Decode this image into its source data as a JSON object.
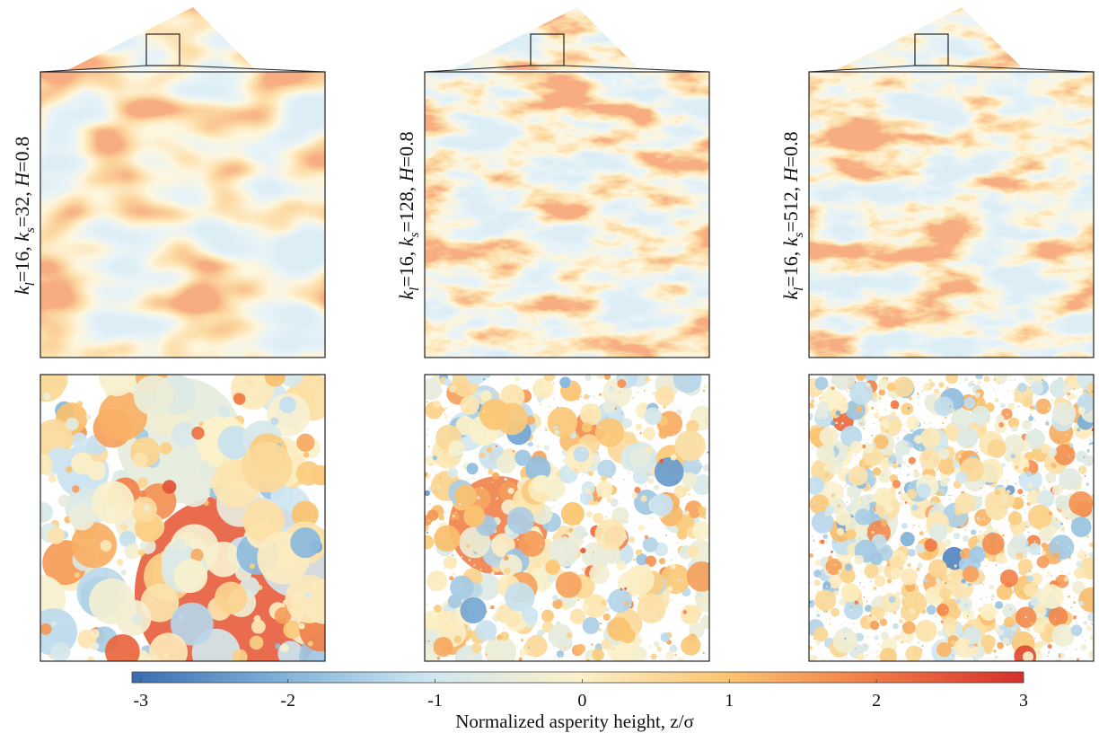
{
  "panels": [
    {
      "label_parts": [
        {
          "text": "k",
          "style": "italic"
        },
        {
          "text": "l",
          "style": "sub"
        },
        {
          "text": "=16, "
        },
        {
          "text": "k",
          "style": "italic"
        },
        {
          "text": "s",
          "style": "sub"
        },
        {
          "text": "=32, "
        },
        {
          "text": "H",
          "style": "italic"
        },
        {
          "text": "=0.8"
        }
      ]
    },
    {
      "label_parts": [
        {
          "text": "k",
          "style": "italic"
        },
        {
          "text": "l",
          "style": "sub"
        },
        {
          "text": "=16, "
        },
        {
          "text": "k",
          "style": "italic"
        },
        {
          "text": "s",
          "style": "sub"
        },
        {
          "text": "=128, "
        },
        {
          "text": "H",
          "style": "italic"
        },
        {
          "text": "=0.8"
        }
      ]
    },
    {
      "label_parts": [
        {
          "text": "k",
          "style": "italic"
        },
        {
          "text": "l",
          "style": "sub"
        },
        {
          "text": "=16, "
        },
        {
          "text": "k",
          "style": "italic"
        },
        {
          "text": "s",
          "style": "sub"
        },
        {
          "text": "=512, "
        },
        {
          "text": "H",
          "style": "italic"
        },
        {
          "text": "=0.8"
        }
      ]
    }
  ],
  "colorbar": {
    "label": "Normalized asperity height, z/σ",
    "lim": [
      -3.06,
      3
    ],
    "ticks": [
      -3,
      -2,
      -1,
      0,
      1,
      2,
      3
    ],
    "colors": [
      "#3a6cb3",
      "#7fb2d8",
      "#cfe6f1",
      "#fcf1c9",
      "#fbc571",
      "#f07a45",
      "#d42f2a"
    ]
  }
}
